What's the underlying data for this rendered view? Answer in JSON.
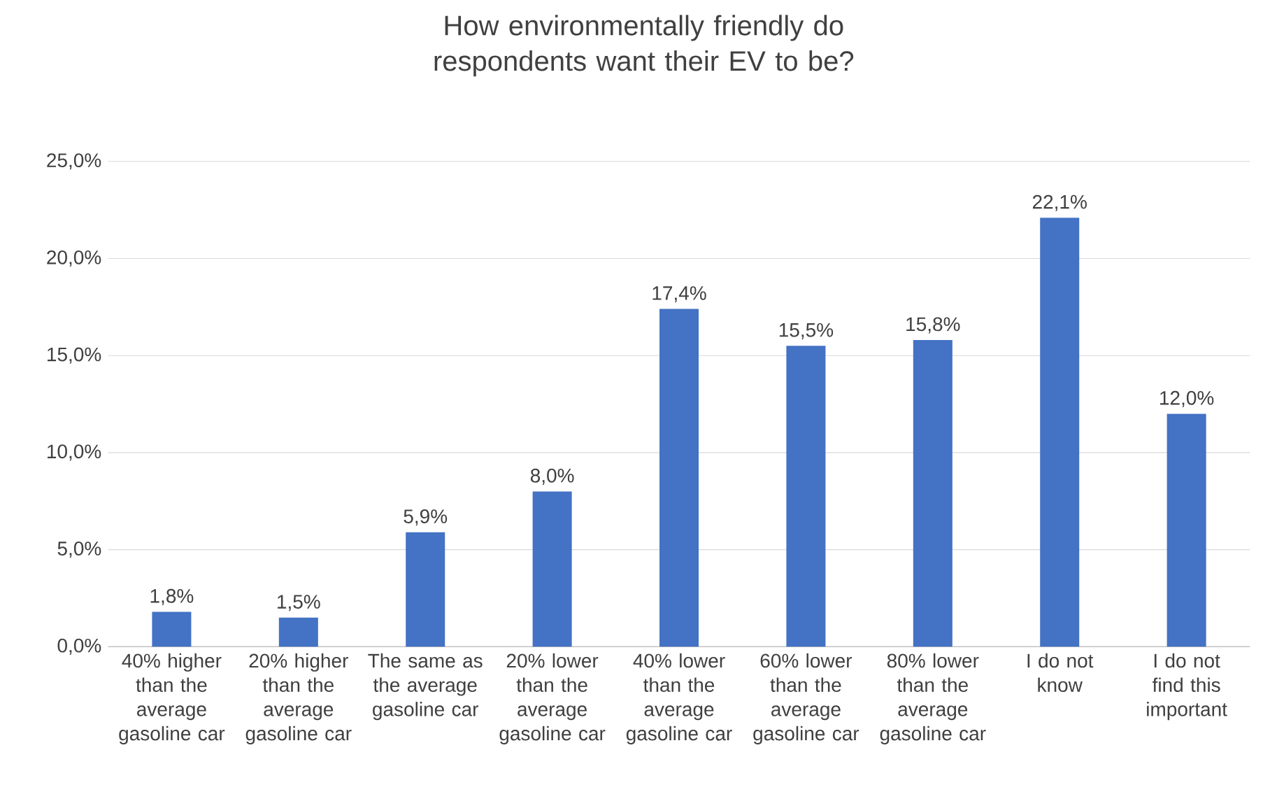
{
  "chart_data": {
    "type": "bar",
    "title": "How environmentally friendly do respondents want their EV to be?",
    "categories": [
      "40% higher than the average gasoline car",
      "20% higher than the average gasoline car",
      "The same as the average gasoline car",
      "20% lower than the average gasoline car",
      "40% lower than the average gasoline car",
      "60% lower than the average gasoline car",
      "80% lower than the average gasoline car",
      "I do not know",
      "I do not find this important"
    ],
    "values": [
      1.8,
      1.5,
      5.9,
      8.0,
      17.4,
      15.5,
      15.8,
      22.1,
      12.0
    ],
    "value_labels": [
      "1,8%",
      "1,5%",
      "5,9%",
      "8,0%",
      "17,4%",
      "15,5%",
      "15,8%",
      "22,1%",
      "12,0%"
    ],
    "color": "#4472c4",
    "ylim": [
      0,
      25
    ],
    "yticks": [
      {
        "value": 0,
        "label": "0,0%"
      },
      {
        "value": 5,
        "label": "5,0%"
      },
      {
        "value": 10,
        "label": "10,0%"
      },
      {
        "value": 15,
        "label": "15,0%"
      },
      {
        "value": 20,
        "label": "20,0%"
      },
      {
        "value": 25,
        "label": "25,0%"
      }
    ],
    "grid": "y"
  }
}
